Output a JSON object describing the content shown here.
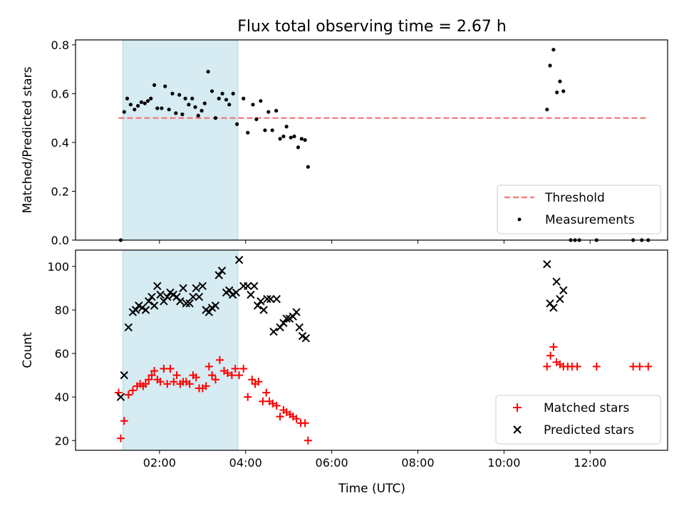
{
  "chart_data": {
    "type": "scatter",
    "title": "Flux total observing time = 2.67 h",
    "xlabel": "Time (UTC)",
    "x_unit": "hours UTC",
    "xlim": [
      0.05,
      13.8
    ],
    "x_ticks": [
      {
        "v": 2,
        "label": "02:00"
      },
      {
        "v": 4,
        "label": "04:00"
      },
      {
        "v": 6,
        "label": "06:00"
      },
      {
        "v": 8,
        "label": "08:00"
      },
      {
        "v": 10,
        "label": "10:00"
      },
      {
        "v": 12,
        "label": "12:00"
      }
    ],
    "shaded_interval": {
      "x": [
        1.15,
        3.82
      ],
      "color": "#add8e6"
    },
    "panels": [
      {
        "id": "ratio",
        "ylabel": "Matched/Predicted stars",
        "ylim": [
          0,
          0.82
        ],
        "y_ticks": [
          "0.0",
          "0.2",
          "0.4",
          "0.6",
          "0.8"
        ],
        "y_tick_values": [
          0,
          0.2,
          0.4,
          0.6,
          0.8
        ],
        "legend": {
          "placement": "lower-right",
          "threshold_label": "Threshold",
          "measurements_label": "Measurements"
        },
        "threshold": {
          "value": 0.5,
          "x": [
            1.05,
            13.35
          ],
          "color": "#f08080",
          "style": "dashed"
        },
        "measurements": {
          "color": "#000000",
          "points": [
            [
              1.1,
              0.0
            ],
            [
              1.18,
              0.525
            ],
            [
              1.25,
              0.58
            ],
            [
              1.33,
              0.555
            ],
            [
              1.42,
              0.535
            ],
            [
              1.5,
              0.55
            ],
            [
              1.58,
              0.565
            ],
            [
              1.66,
              0.56
            ],
            [
              1.73,
              0.57
            ],
            [
              1.8,
              0.58
            ],
            [
              1.88,
              0.635
            ],
            [
              1.95,
              0.54
            ],
            [
              2.05,
              0.54
            ],
            [
              2.13,
              0.63
            ],
            [
              2.22,
              0.535
            ],
            [
              2.3,
              0.6
            ],
            [
              2.38,
              0.52
            ],
            [
              2.46,
              0.595
            ],
            [
              2.53,
              0.515
            ],
            [
              2.6,
              0.58
            ],
            [
              2.68,
              0.555
            ],
            [
              2.76,
              0.58
            ],
            [
              2.83,
              0.545
            ],
            [
              2.9,
              0.51
            ],
            [
              2.98,
              0.53
            ],
            [
              3.05,
              0.56
            ],
            [
              3.13,
              0.69
            ],
            [
              3.22,
              0.61
            ],
            [
              3.3,
              0.5
            ],
            [
              3.38,
              0.58
            ],
            [
              3.46,
              0.6
            ],
            [
              3.55,
              0.575
            ],
            [
              3.62,
              0.555
            ],
            [
              3.71,
              0.6
            ],
            [
              3.8,
              0.475
            ],
            [
              3.95,
              0.58
            ],
            [
              4.05,
              0.44
            ],
            [
              4.17,
              0.555
            ],
            [
              4.25,
              0.495
            ],
            [
              4.35,
              0.57
            ],
            [
              4.45,
              0.45
            ],
            [
              4.53,
              0.525
            ],
            [
              4.62,
              0.45
            ],
            [
              4.71,
              0.53
            ],
            [
              4.8,
              0.415
            ],
            [
              4.88,
              0.425
            ],
            [
              4.95,
              0.465
            ],
            [
              5.05,
              0.42
            ],
            [
              5.13,
              0.425
            ],
            [
              5.22,
              0.38
            ],
            [
              5.3,
              0.415
            ],
            [
              5.38,
              0.41
            ],
            [
              5.45,
              0.3
            ],
            [
              11.0,
              0.535
            ],
            [
              11.07,
              0.715
            ],
            [
              11.15,
              0.78
            ],
            [
              11.23,
              0.605
            ],
            [
              11.3,
              0.65
            ],
            [
              11.38,
              0.61
            ],
            [
              11.55,
              0.0
            ],
            [
              11.65,
              0.0
            ],
            [
              11.75,
              0.0
            ],
            [
              12.15,
              0.0
            ],
            [
              13.0,
              0.0
            ],
            [
              13.2,
              0.0
            ],
            [
              13.35,
              0.0
            ]
          ]
        }
      },
      {
        "id": "counts",
        "ylabel": "Count",
        "ylim": [
          15.5,
          107.5
        ],
        "y_ticks": [
          "20",
          "40",
          "60",
          "80",
          "100"
        ],
        "y_tick_values": [
          20,
          40,
          60,
          80,
          100
        ],
        "legend": {
          "placement": "lower-right"
        },
        "series": [
          {
            "name": "Matched stars",
            "marker": "plus",
            "color": "#ff0000",
            "points": [
              [
                1.05,
                42
              ],
              [
                1.1,
                21
              ],
              [
                1.18,
                29
              ],
              [
                1.28,
                41
              ],
              [
                1.38,
                43
              ],
              [
                1.48,
                45
              ],
              [
                1.55,
                46
              ],
              [
                1.62,
                45
              ],
              [
                1.68,
                46
              ],
              [
                1.75,
                48
              ],
              [
                1.82,
                50
              ],
              [
                1.88,
                52
              ],
              [
                1.95,
                48
              ],
              [
                2.02,
                47
              ],
              [
                2.1,
                53
              ],
              [
                2.18,
                46
              ],
              [
                2.25,
                53
              ],
              [
                2.33,
                47
              ],
              [
                2.4,
                50
              ],
              [
                2.48,
                46
              ],
              [
                2.55,
                47
              ],
              [
                2.62,
                47
              ],
              [
                2.7,
                46
              ],
              [
                2.78,
                50
              ],
              [
                2.85,
                49
              ],
              [
                2.92,
                44
              ],
              [
                3.0,
                44
              ],
              [
                3.08,
                45
              ],
              [
                3.15,
                54
              ],
              [
                3.22,
                50
              ],
              [
                3.3,
                48
              ],
              [
                3.4,
                57
              ],
              [
                3.5,
                52
              ],
              [
                3.58,
                51
              ],
              [
                3.68,
                50
              ],
              [
                3.76,
                53
              ],
              [
                3.85,
                50
              ],
              [
                3.95,
                53
              ],
              [
                4.05,
                40
              ],
              [
                4.15,
                48
              ],
              [
                4.22,
                46
              ],
              [
                4.3,
                47
              ],
              [
                4.4,
                38
              ],
              [
                4.48,
                42
              ],
              [
                4.55,
                38
              ],
              [
                4.63,
                37
              ],
              [
                4.72,
                36
              ],
              [
                4.8,
                31
              ],
              [
                4.88,
                34
              ],
              [
                4.95,
                33
              ],
              [
                5.03,
                32
              ],
              [
                5.1,
                31
              ],
              [
                5.18,
                30
              ],
              [
                5.28,
                28
              ],
              [
                5.38,
                28
              ],
              [
                5.45,
                20
              ],
              [
                11.0,
                54
              ],
              [
                11.08,
                59
              ],
              [
                11.15,
                63
              ],
              [
                11.22,
                56
              ],
              [
                11.3,
                55
              ],
              [
                11.38,
                54
              ],
              [
                11.48,
                54
              ],
              [
                11.58,
                54
              ],
              [
                11.7,
                54
              ],
              [
                12.15,
                54
              ],
              [
                13.0,
                54
              ],
              [
                13.15,
                54
              ],
              [
                13.35,
                54
              ]
            ]
          },
          {
            "name": "Predicted stars",
            "marker": "x",
            "color": "#000000",
            "points": [
              [
                1.1,
                40
              ],
              [
                1.18,
                50
              ],
              [
                1.28,
                72
              ],
              [
                1.38,
                79
              ],
              [
                1.45,
                80
              ],
              [
                1.52,
                82
              ],
              [
                1.6,
                81
              ],
              [
                1.68,
                80
              ],
              [
                1.75,
                84
              ],
              [
                1.82,
                86
              ],
              [
                1.88,
                82
              ],
              [
                1.95,
                91
              ],
              [
                2.02,
                87
              ],
              [
                2.1,
                84
              ],
              [
                2.18,
                86
              ],
              [
                2.25,
                88
              ],
              [
                2.32,
                87
              ],
              [
                2.4,
                86
              ],
              [
                2.48,
                84
              ],
              [
                2.55,
                90
              ],
              [
                2.62,
                83
              ],
              [
                2.7,
                83
              ],
              [
                2.78,
                86
              ],
              [
                2.85,
                90
              ],
              [
                2.92,
                86
              ],
              [
                3.0,
                91
              ],
              [
                3.08,
                80
              ],
              [
                3.15,
                79
              ],
              [
                3.22,
                81
              ],
              [
                3.3,
                82
              ],
              [
                3.38,
                96
              ],
              [
                3.45,
                98
              ],
              [
                3.55,
                88
              ],
              [
                3.62,
                89
              ],
              [
                3.7,
                87
              ],
              [
                3.78,
                88
              ],
              [
                3.85,
                103
              ],
              [
                3.95,
                91
              ],
              [
                4.05,
                91
              ],
              [
                4.12,
                87
              ],
              [
                4.2,
                91
              ],
              [
                4.28,
                82
              ],
              [
                4.35,
                84
              ],
              [
                4.42,
                80
              ],
              [
                4.5,
                85
              ],
              [
                4.58,
                85
              ],
              [
                4.65,
                70
              ],
              [
                4.72,
                85
              ],
              [
                4.8,
                72
              ],
              [
                4.88,
                74
              ],
              [
                4.95,
                76
              ],
              [
                5.02,
                76
              ],
              [
                5.1,
                77
              ],
              [
                5.18,
                79
              ],
              [
                5.25,
                72
              ],
              [
                5.32,
                68
              ],
              [
                5.4,
                67
              ],
              [
                11.0,
                101
              ],
              [
                11.07,
                83
              ],
              [
                11.15,
                81
              ],
              [
                11.22,
                93
              ],
              [
                11.3,
                85
              ],
              [
                11.38,
                89
              ]
            ]
          }
        ]
      }
    ]
  }
}
